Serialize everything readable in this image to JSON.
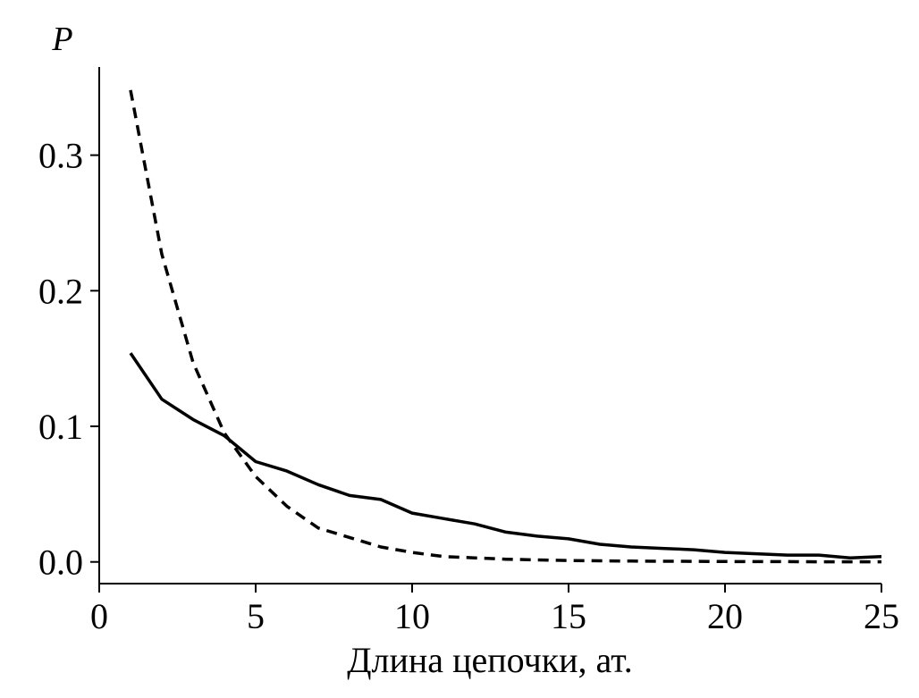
{
  "chart_data": {
    "type": "line",
    "title": "",
    "xlabel": "Длина цепочки, ат.",
    "ylabel": "P",
    "xlim": [
      0,
      25
    ],
    "ylim": [
      -0.016,
      0.365
    ],
    "xticks": [
      0,
      5,
      10,
      15,
      20,
      25
    ],
    "xtick_labels": [
      "0",
      "5",
      "10",
      "15",
      "20",
      "25"
    ],
    "yticks": [
      0.0,
      0.1,
      0.2,
      0.3
    ],
    "ytick_labels": [
      "0.0",
      "0.1",
      "0.2",
      "0.3"
    ],
    "grid": false,
    "legend": "none",
    "series": [
      {
        "style": "solid",
        "color": "#000000",
        "x": [
          1,
          2,
          3,
          4,
          5,
          6,
          7,
          8,
          9,
          10,
          11,
          12,
          13,
          14,
          15,
          16,
          17,
          18,
          19,
          20,
          21,
          22,
          23,
          24,
          25
        ],
        "y": [
          0.154,
          0.12,
          0.105,
          0.093,
          0.074,
          0.067,
          0.057,
          0.049,
          0.046,
          0.036,
          0.032,
          0.028,
          0.022,
          0.019,
          0.017,
          0.013,
          0.011,
          0.01,
          0.009,
          0.007,
          0.006,
          0.005,
          0.005,
          0.003,
          0.004
        ]
      },
      {
        "style": "dashed",
        "color": "#000000",
        "x": [
          1,
          2,
          3,
          4,
          5,
          6,
          7,
          8,
          9,
          10,
          11,
          12,
          13,
          14,
          15,
          16,
          17,
          18,
          19,
          20,
          21,
          22,
          23,
          24,
          25
        ],
        "y": [
          0.348,
          0.227,
          0.147,
          0.095,
          0.063,
          0.041,
          0.025,
          0.018,
          0.011,
          0.007,
          0.004,
          0.003,
          0.002,
          0.0015,
          0.001,
          0.0008,
          0.0006,
          0.0005,
          0.0004,
          0.0003,
          0.0002,
          0.0002,
          0.0001,
          0.0001,
          0.0001
        ]
      }
    ]
  }
}
